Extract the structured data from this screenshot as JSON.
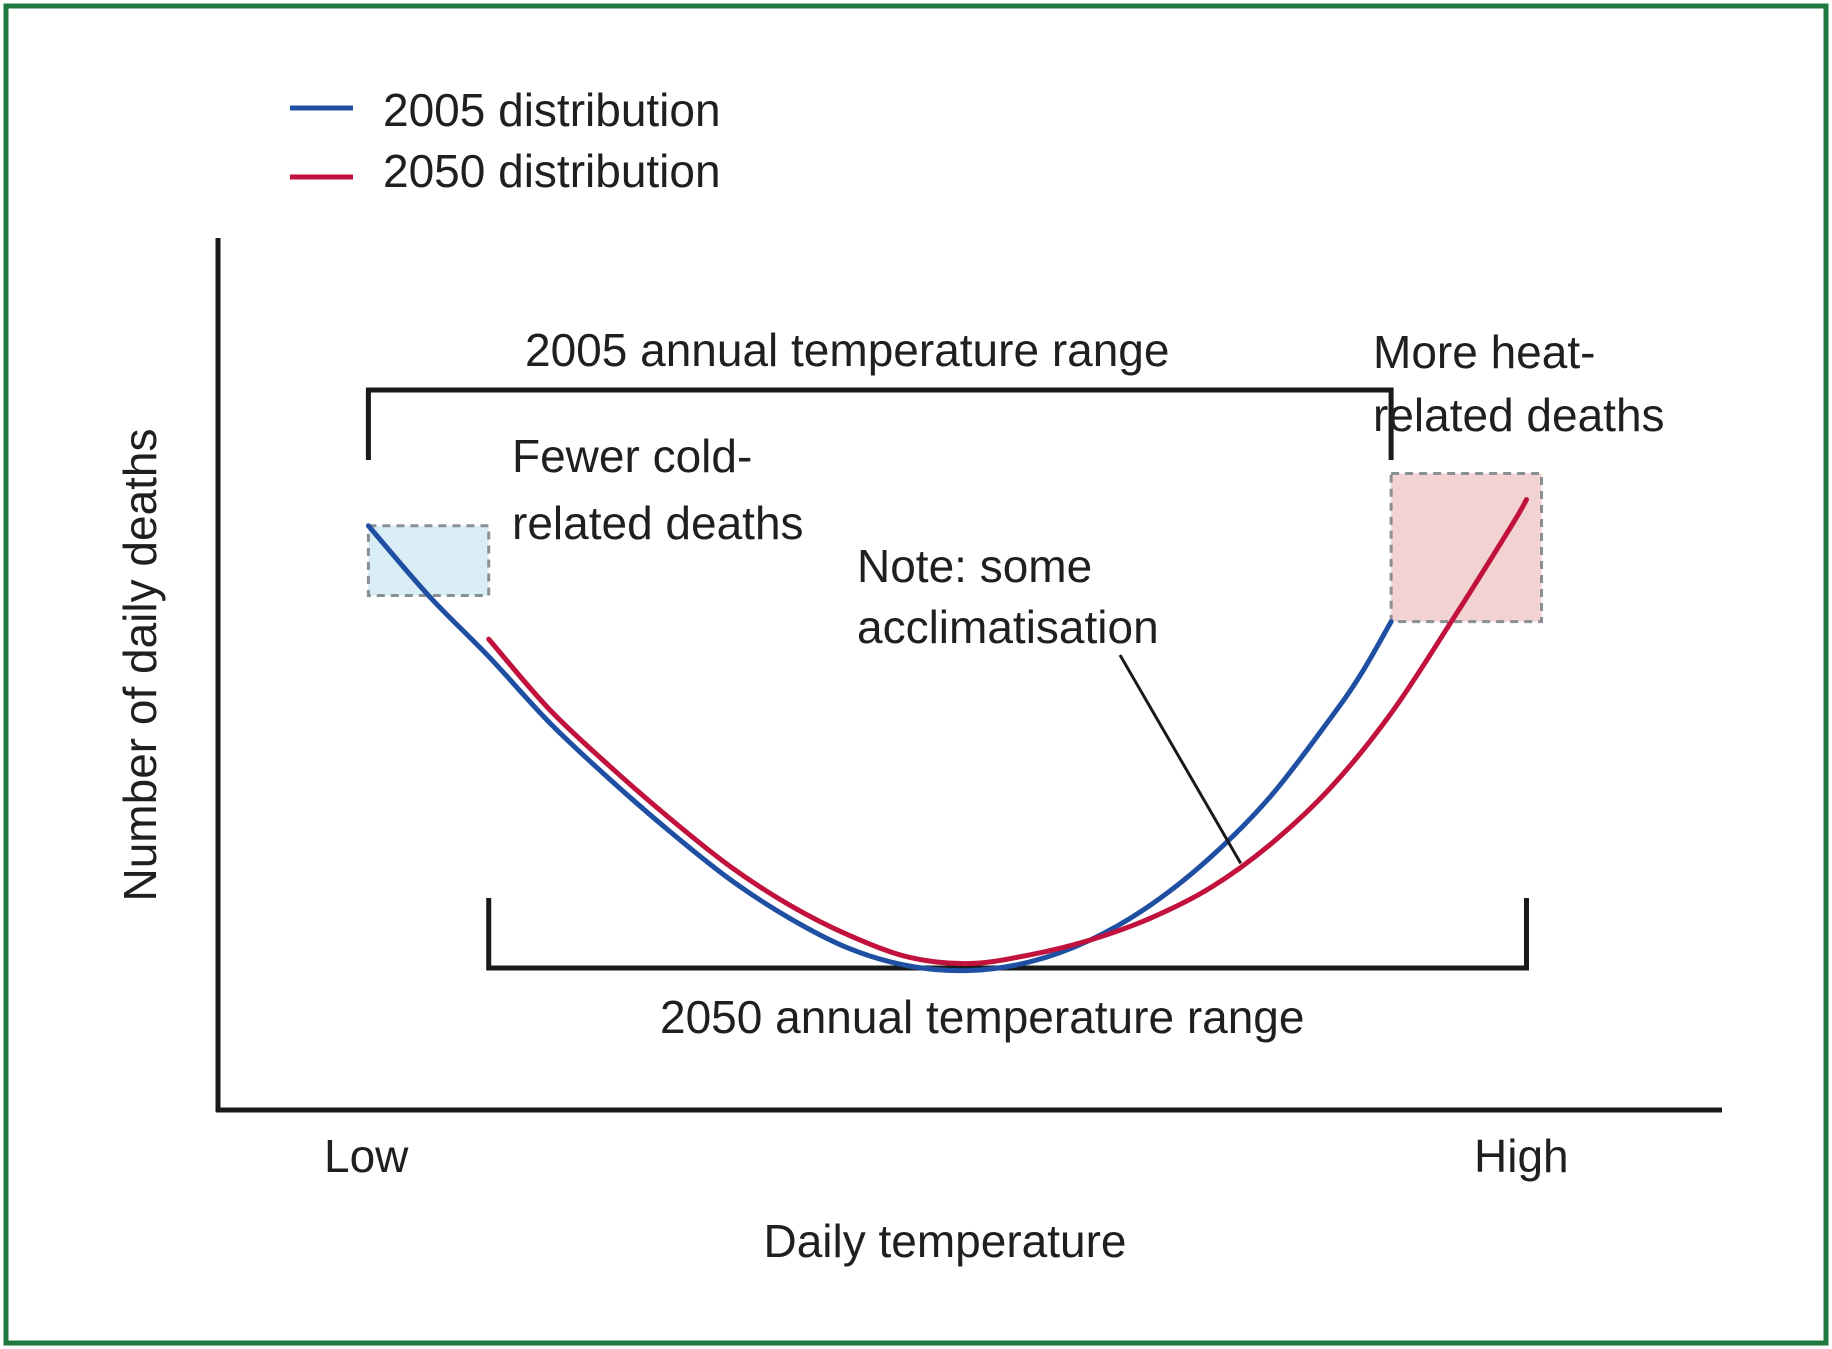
{
  "chart_data": {
    "type": "line",
    "title": "",
    "xlabel": "Daily temperature",
    "ylabel": "Number of daily deaths",
    "x_ticks": {
      "low": "Low",
      "high": "High"
    },
    "xlim": [
      0,
      100
    ],
    "ylim": [
      0,
      100
    ],
    "legend_position": "top-left",
    "series": [
      {
        "name": "2005 distribution",
        "color": "#1f4fa3",
        "x": [
          10,
          14,
          18,
          22,
          26,
          30,
          34,
          38,
          42,
          46,
          50,
          54,
          58,
          62,
          66,
          70,
          74,
          76,
          78
        ],
        "y": [
          67,
          59,
          52,
          44.5,
          38,
          32,
          26.5,
          22,
          18.5,
          16.5,
          16,
          17,
          19.5,
          23.5,
          29,
          36,
          45,
          50,
          56
        ]
      },
      {
        "name": "2050 distribution",
        "color": "#c0123c",
        "x": [
          18,
          22,
          26,
          30,
          34,
          38,
          42,
          46,
          50,
          54,
          58,
          62,
          66,
          70,
          74,
          78,
          82,
          86,
          87
        ],
        "y": [
          54,
          46,
          39.5,
          33.5,
          28,
          23.5,
          20,
          17.5,
          16.8,
          17.8,
          19.5,
          22,
          25.5,
          30.5,
          37,
          45.5,
          56,
          67,
          70
        ]
      }
    ],
    "ranges": [
      {
        "label": "2005 annual temperature range",
        "x": [
          10,
          78
        ],
        "position": "above"
      },
      {
        "label": "2050 annual temperature range",
        "x": [
          18,
          87
        ],
        "position": "below"
      }
    ],
    "highlights": [
      {
        "label_lines": [
          "Fewer cold-",
          "related deaths"
        ],
        "x": [
          10,
          18
        ],
        "y": [
          59,
          67
        ],
        "color": "#d8edf5",
        "edge": "#8a8f96"
      },
      {
        "label_lines": [
          "More heat-",
          "related deaths"
        ],
        "x": [
          78,
          88
        ],
        "y": [
          56,
          73
        ],
        "color": "#f3d2d2",
        "edge": "#8a8f96"
      }
    ],
    "annotations": [
      {
        "lines": [
          "Note: some",
          "acclimatisation"
        ],
        "points_to_x": 68,
        "points_to_y": 30
      }
    ]
  },
  "legend": {
    "items": [
      {
        "label": "2005 distribution",
        "color": "#1f4fa3"
      },
      {
        "label": "2050 distribution",
        "color": "#c0123c"
      }
    ]
  },
  "colors": {
    "border": "#1e7a3c",
    "axis": "#1a1a1a"
  }
}
